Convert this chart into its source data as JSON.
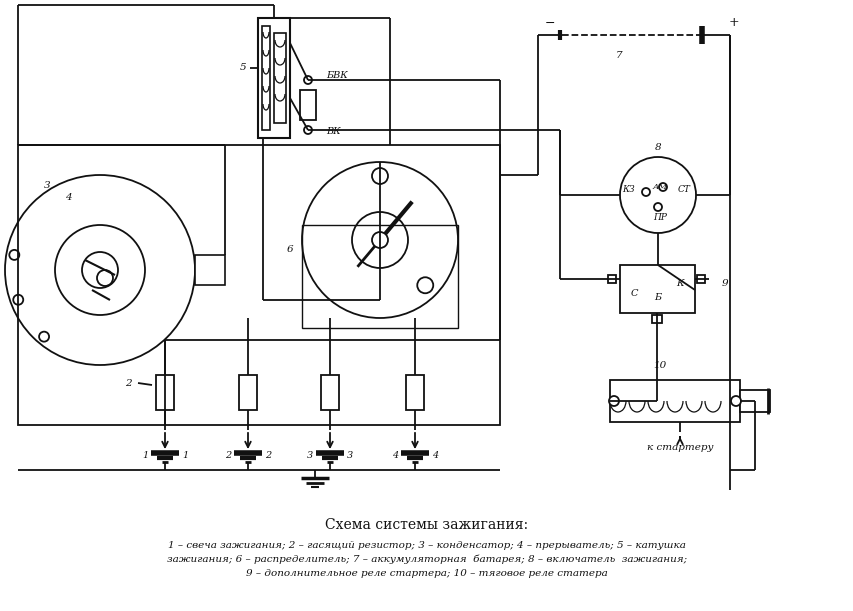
{
  "title": "Схема системы зажигания:",
  "caption_line1": "1 – свеча зажигания; 2 – гасящий резистор; 3 – конденсатор; 4 – прерыватель; 5 – катушка",
  "caption_line2": "зажигания; 6 – распределитель; 7 – аккумуляторная  батарея; 8 – включатель  зажигания;",
  "caption_line3": "9 – дополнительное реле стартера; 10 – тяговое реле статера",
  "bg_color": "#ffffff",
  "lc": "#111111",
  "lw": 1.3,
  "label_БВК": "БВК",
  "label_ВК": "ВК",
  "label_КЗ": "КЗ",
  "label_АМ": "АМ",
  "label_СТ": "СТ",
  "label_ПР": "ПР",
  "label_С": "С",
  "label_Б": "Б",
  "label_К": "К",
  "label_к_стартеру": "к стартеру",
  "label_plus": "+",
  "label_minus": "−",
  "label_7": "7",
  "label_8": "8",
  "label_9": "9",
  "label_10": "10",
  "label_5": "5",
  "label_6": "6",
  "label_2": "2",
  "label_3": "3",
  "label_4": "4"
}
